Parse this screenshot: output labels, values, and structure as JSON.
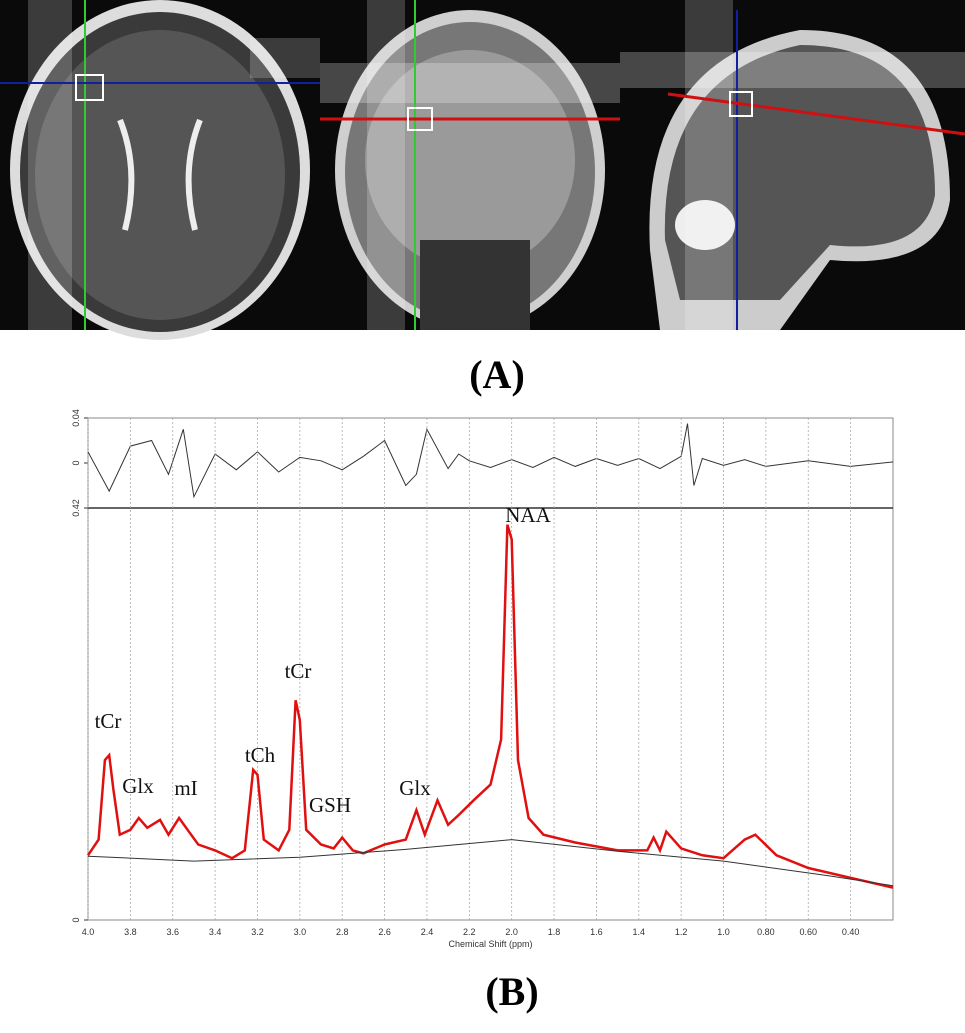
{
  "panels": [
    "(A)",
    "(B)"
  ],
  "chart_data": [
    {
      "type": "line",
      "role": "residual",
      "x": [
        4.0,
        3.9,
        3.8,
        3.7,
        3.62,
        3.55,
        3.5,
        3.4,
        3.3,
        3.2,
        3.1,
        3.0,
        2.9,
        2.8,
        2.7,
        2.6,
        2.5,
        2.45,
        2.4,
        2.3,
        2.25,
        2.2,
        2.1,
        2.0,
        1.9,
        1.8,
        1.7,
        1.6,
        1.5,
        1.4,
        1.3,
        1.2,
        1.17,
        1.14,
        1.1,
        1.0,
        0.9,
        0.8,
        0.6,
        0.4,
        0.2
      ],
      "series": [
        {
          "color": "#333333",
          "values": [
            0.01,
            -0.025,
            0.015,
            0.02,
            -0.01,
            0.03,
            -0.03,
            0.008,
            -0.006,
            0.01,
            -0.008,
            0.005,
            0.002,
            -0.006,
            0.006,
            0.02,
            -0.02,
            -0.01,
            0.03,
            -0.005,
            0.008,
            0.002,
            -0.004,
            0.003,
            -0.004,
            0.005,
            -0.003,
            0.004,
            -0.002,
            0.004,
            -0.005,
            0.006,
            0.035,
            -0.02,
            0.004,
            -0.002,
            0.003,
            -0.003,
            0.002,
            -0.003,
            0.001
          ]
        }
      ],
      "ylim": [
        -0.04,
        0.04
      ],
      "yticks": [
        0.04,
        0
      ]
    },
    {
      "type": "line",
      "role": "spectrum",
      "x_label": "Chemical Shift (ppm)",
      "xlim": [
        4.0,
        0.2
      ],
      "xticks": [
        {
          "value": 4,
          "label": "4.0"
        },
        3.8,
        3.6,
        3.4,
        3.2,
        {
          "value": 3,
          "label": "3.0"
        },
        2.8,
        2.6,
        2.4,
        2.2,
        {
          "value": 2,
          "label": "2.0"
        },
        1.8,
        1.6,
        1.4,
        1.2,
        {
          "value": 1,
          "label": "1.0"
        },
        {
          "value": 0.8,
          "label": "0.80"
        },
        {
          "value": 0.6,
          "label": "0.60"
        },
        {
          "value": 0.4,
          "label": "0.40"
        }
      ],
      "ylim": [
        0,
        0.42
      ],
      "yticks": [
        0,
        0.42
      ],
      "grid": true,
      "x": [
        4.0,
        3.95,
        3.92,
        3.9,
        3.88,
        3.85,
        3.8,
        3.76,
        3.72,
        3.66,
        3.62,
        3.57,
        3.53,
        3.48,
        3.4,
        3.32,
        3.26,
        3.22,
        3.2,
        3.17,
        3.1,
        3.05,
        3.02,
        3.0,
        2.97,
        2.9,
        2.84,
        2.8,
        2.75,
        2.7,
        2.6,
        2.5,
        2.45,
        2.41,
        2.35,
        2.3,
        2.25,
        2.18,
        2.1,
        2.05,
        2.02,
        2.0,
        1.97,
        1.92,
        1.85,
        1.7,
        1.5,
        1.36,
        1.33,
        1.3,
        1.27,
        1.2,
        1.1,
        1.0,
        0.9,
        0.85,
        0.75,
        0.6,
        0.4,
        0.2
      ],
      "series": [
        {
          "color": "#e01010",
          "values": [
            0.066,
            0.082,
            0.163,
            0.168,
            0.133,
            0.087,
            0.092,
            0.104,
            0.094,
            0.102,
            0.087,
            0.104,
            0.092,
            0.077,
            0.071,
            0.063,
            0.071,
            0.153,
            0.148,
            0.082,
            0.071,
            0.092,
            0.224,
            0.204,
            0.092,
            0.077,
            0.073,
            0.084,
            0.071,
            0.068,
            0.077,
            0.082,
            0.112,
            0.087,
            0.122,
            0.097,
            0.107,
            0.122,
            0.138,
            0.184,
            0.403,
            0.388,
            0.163,
            0.104,
            0.087,
            0.079,
            0.071,
            0.071,
            0.084,
            0.071,
            0.09,
            0.073,
            0.066,
            0.063,
            0.082,
            0.087,
            0.066,
            0.053,
            0.043,
            0.033
          ]
        },
        {
          "color": "#333333",
          "x": [
            4.0,
            3.5,
            3.0,
            2.5,
            2.0,
            1.5,
            1.0,
            0.5,
            0.2
          ],
          "values": [
            0.065,
            0.06,
            0.064,
            0.072,
            0.082,
            0.07,
            0.06,
            0.045,
            0.035
          ]
        }
      ],
      "annotations": [
        "tCr",
        "Glx",
        "mI",
        "tCh",
        "tCr",
        "GSH",
        "Glx",
        "NAA"
      ]
    }
  ]
}
